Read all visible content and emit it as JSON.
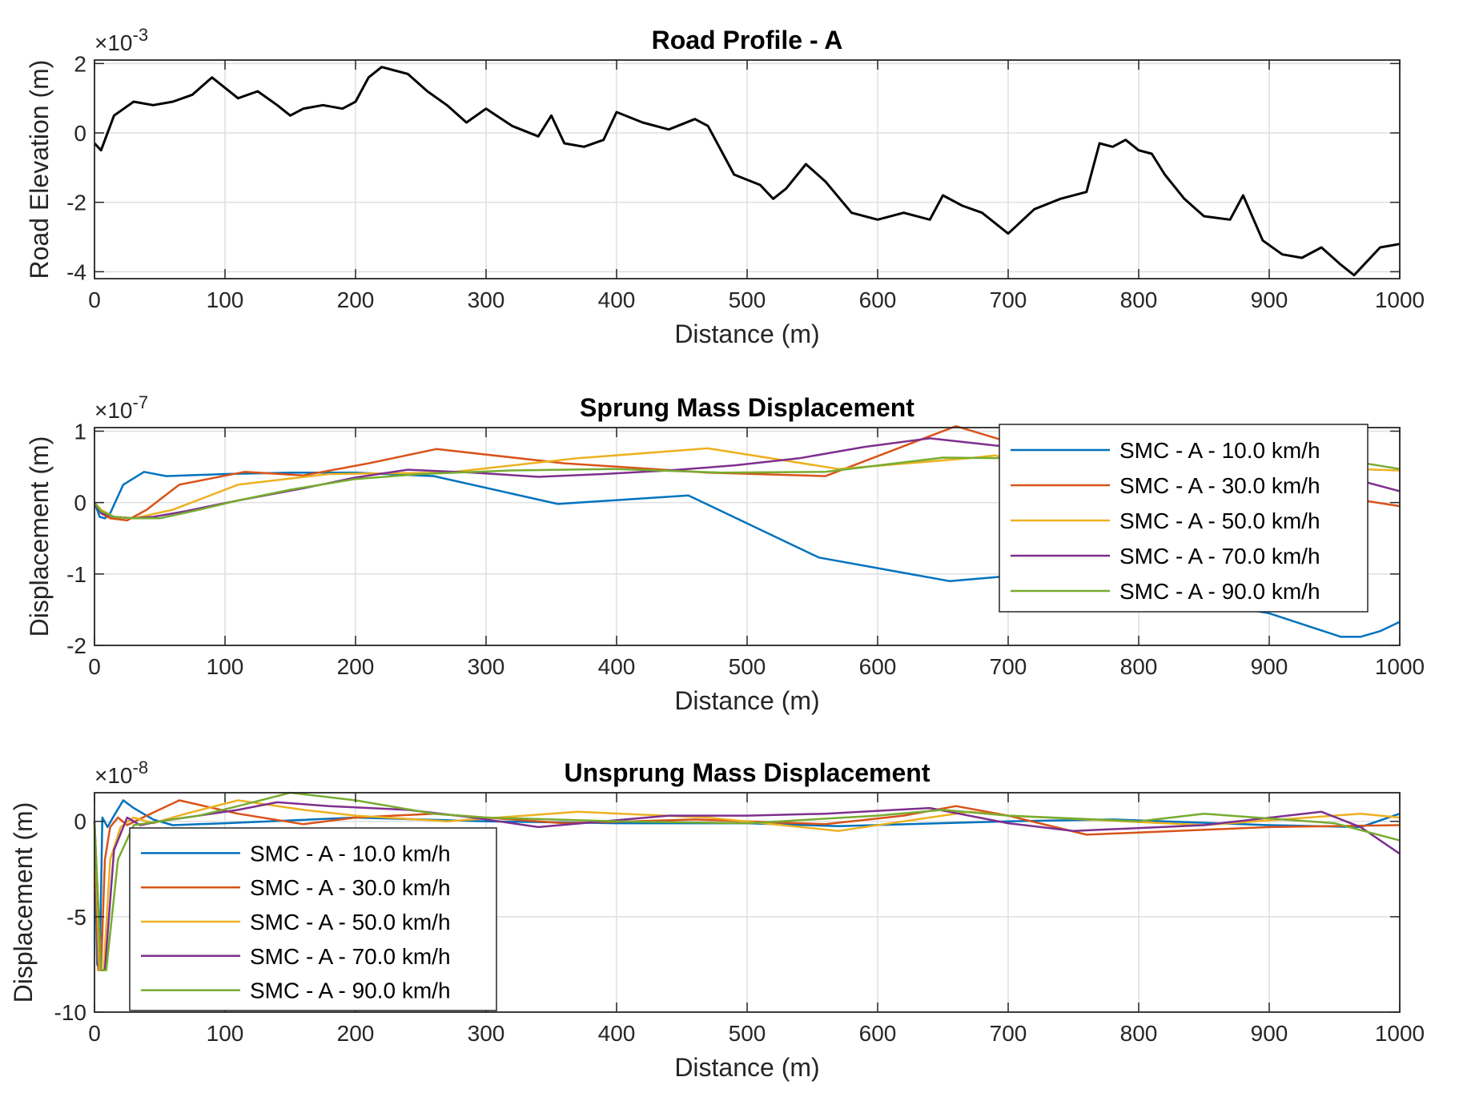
{
  "chart_data": [
    {
      "type": "line",
      "title": "Road Profile - A",
      "xlabel": "Distance (m)",
      "ylabel": "Road Elevation (m)",
      "exponent": "-3",
      "xlim": [
        0,
        1000
      ],
      "ylim": [
        -4.2,
        2.1
      ],
      "xticks": [
        "0",
        "100",
        "200",
        "300",
        "400",
        "500",
        "600",
        "700",
        "800",
        "900",
        "1000"
      ],
      "yticks": [
        2,
        0,
        -2,
        -4
      ],
      "ytick_labels": [
        "2",
        "0",
        "-2",
        "-4"
      ],
      "grid": true,
      "series": [
        {
          "color": "#000000",
          "x": [
            0,
            5,
            15,
            30,
            45,
            60,
            75,
            90,
            100,
            110,
            125,
            140,
            150,
            160,
            175,
            190,
            200,
            210,
            220,
            230,
            240,
            255,
            270,
            285,
            300,
            320,
            340,
            350,
            360,
            375,
            390,
            400,
            420,
            440,
            460,
            470,
            490,
            510,
            520,
            530,
            545,
            560,
            580,
            600,
            620,
            640,
            650,
            665,
            680,
            700,
            720,
            740,
            760,
            770,
            780,
            790,
            800,
            810,
            820,
            835,
            850,
            870,
            880,
            895,
            910,
            925,
            940,
            955,
            965,
            975,
            985,
            1000
          ],
          "y": [
            -0.3,
            -0.5,
            0.5,
            0.9,
            0.8,
            0.9,
            1.1,
            1.6,
            1.3,
            1.0,
            1.2,
            0.8,
            0.5,
            0.7,
            0.8,
            0.7,
            0.9,
            1.6,
            1.9,
            1.8,
            1.7,
            1.2,
            0.8,
            0.3,
            0.7,
            0.2,
            -0.1,
            0.5,
            -0.3,
            -0.4,
            -0.2,
            0.6,
            0.3,
            0.1,
            0.4,
            0.2,
            -1.2,
            -1.5,
            -1.9,
            -1.6,
            -0.9,
            -1.4,
            -2.3,
            -2.5,
            -2.3,
            -2.5,
            -1.8,
            -2.1,
            -2.3,
            -2.9,
            -2.2,
            -1.9,
            -1.7,
            -0.3,
            -0.4,
            -0.2,
            -0.5,
            -0.6,
            -1.2,
            -1.9,
            -2.4,
            -2.5,
            -1.8,
            -3.1,
            -3.5,
            -3.6,
            -3.3,
            -3.8,
            -4.1,
            -3.7,
            -3.3,
            -3.2
          ]
        }
      ]
    },
    {
      "type": "line",
      "title": "Sprung Mass Displacement",
      "xlabel": "Distance (m)",
      "ylabel": "Displacement (m)",
      "exponent": "-7",
      "xlim": [
        0,
        1000
      ],
      "ylim": [
        -2,
        1.05
      ],
      "xticks": [
        "0",
        "100",
        "200",
        "300",
        "400",
        "500",
        "600",
        "700",
        "800",
        "900",
        "1000"
      ],
      "yticks": [
        1,
        0,
        -1,
        -2
      ],
      "ytick_labels": [
        "1",
        "0",
        "-1",
        "-2"
      ],
      "grid": true,
      "legend_position": "top-right",
      "series": [
        {
          "name": "SMC - A - 10.0 km/h",
          "color": "#0072BD",
          "x": [
            0,
            4,
            8,
            12,
            22,
            38,
            55,
            100,
            150,
            200,
            260,
            355,
            455,
            555,
            655,
            700,
            720,
            900,
            955,
            970,
            985,
            1000
          ],
          "y": [
            0,
            -0.2,
            -0.22,
            -0.15,
            0.25,
            0.43,
            0.37,
            0.4,
            0.42,
            0.42,
            0.37,
            -0.02,
            0.1,
            -0.77,
            -1.1,
            -1.03,
            -1.0,
            -1.55,
            -1.88,
            -1.88,
            -1.8,
            -1.67
          ]
        },
        {
          "name": "SMC - A - 30.0 km/h",
          "color": "#D95319",
          "x": [
            0,
            5,
            12,
            25,
            40,
            65,
            115,
            160,
            210,
            262,
            360,
            470,
            560,
            610,
            660,
            700,
            720,
            1000
          ],
          "y": [
            0,
            -0.15,
            -0.22,
            -0.25,
            -0.1,
            0.25,
            0.43,
            0.38,
            0.55,
            0.75,
            0.55,
            0.42,
            0.37,
            0.72,
            1.07,
            0.85,
            0.75,
            -0.05
          ]
        },
        {
          "name": "SMC - A - 50.0 km/h",
          "color": "#EDB120",
          "x": [
            0,
            5,
            15,
            30,
            60,
            110,
            180,
            270,
            370,
            470,
            570,
            670,
            690,
            700,
            1000
          ],
          "y": [
            0,
            -0.1,
            -0.2,
            -0.22,
            -0.1,
            0.25,
            0.4,
            0.42,
            0.62,
            0.76,
            0.47,
            0.62,
            0.66,
            0.62,
            0.45
          ]
        },
        {
          "name": "SMC - A - 70.0 km/h",
          "color": "#7E2F8E",
          "x": [
            0,
            5,
            15,
            30,
            45,
            70,
            110,
            160,
            200,
            240,
            290,
            340,
            390,
            440,
            490,
            540,
            590,
            640,
            700,
            720,
            930,
            1000
          ],
          "y": [
            0,
            -0.15,
            -0.2,
            -0.22,
            -0.2,
            -0.12,
            0.03,
            0.2,
            0.35,
            0.46,
            0.42,
            0.36,
            0.4,
            0.45,
            0.52,
            0.62,
            0.78,
            0.9,
            0.78,
            0.72,
            0.5,
            0.16
          ]
        },
        {
          "name": "SMC - A - 90.0 km/h",
          "color": "#77AC30",
          "x": [
            0,
            5,
            15,
            30,
            50,
            80,
            110,
            150,
            200,
            250,
            320,
            400,
            480,
            560,
            650,
            700,
            720,
            940,
            1000
          ],
          "y": [
            0,
            -0.12,
            -0.2,
            -0.22,
            -0.22,
            -0.1,
            0.03,
            0.18,
            0.33,
            0.4,
            0.45,
            0.47,
            0.42,
            0.43,
            0.63,
            0.62,
            0.6,
            0.65,
            0.47
          ]
        }
      ]
    },
    {
      "type": "line",
      "title": "Unsprung Mass Displacement",
      "xlabel": "Distance (m)",
      "ylabel": "Displacement (m)",
      "exponent": "-8",
      "xlim": [
        0,
        1000
      ],
      "ylim": [
        -10,
        1.5
      ],
      "xticks": [
        "0",
        "100",
        "200",
        "300",
        "400",
        "500",
        "600",
        "700",
        "800",
        "900",
        "1000"
      ],
      "yticks": [
        0,
        -5,
        -10
      ],
      "ytick_labels": [
        "0",
        "-5",
        "-10"
      ],
      "grid": true,
      "legend_position": "bottom-left",
      "series": [
        {
          "name": "SMC - A - 10.0 km/h",
          "color": "#0072BD",
          "x": [
            0,
            2,
            4,
            6,
            10,
            15,
            22,
            30,
            45,
            60,
            100,
            200,
            300,
            400,
            500,
            570,
            700,
            780,
            900,
            970,
            1000
          ],
          "y": [
            0,
            -7.5,
            -7.8,
            0.2,
            -0.3,
            0.3,
            1.1,
            0.7,
            0.1,
            -0.2,
            -0.1,
            0.2,
            0.0,
            -0.1,
            -0.1,
            -0.25,
            0.0,
            0.1,
            -0.2,
            -0.3,
            0.4
          ]
        },
        {
          "name": "SMC - A - 30.0 km/h",
          "color": "#D95319",
          "x": [
            0,
            3,
            5,
            8,
            12,
            18,
            25,
            40,
            65,
            110,
            160,
            200,
            260,
            300,
            360,
            460,
            560,
            620,
            660,
            700,
            760,
            900,
            1000
          ],
          "y": [
            0,
            -7.8,
            -7.8,
            -2,
            -0.3,
            0.2,
            -0.2,
            0.3,
            1.1,
            0.4,
            -0.15,
            0.2,
            0.4,
            0.2,
            -0.1,
            0.1,
            -0.15,
            0.3,
            0.8,
            0.3,
            -0.7,
            -0.3,
            -0.2
          ]
        },
        {
          "name": "SMC - A - 50.0 km/h",
          "color": "#EDB120",
          "x": [
            0,
            4,
            7,
            12,
            20,
            30,
            45,
            70,
            110,
            160,
            200,
            270,
            370,
            470,
            570,
            670,
            700,
            850,
            970,
            1000
          ],
          "y": [
            0,
            -7.8,
            -7.8,
            -2,
            -0.3,
            0.2,
            -0.1,
            0.4,
            1.1,
            0.6,
            0.3,
            0.0,
            0.5,
            0.2,
            -0.5,
            0.5,
            0.3,
            -0.2,
            0.4,
            0.2
          ]
        },
        {
          "name": "SMC - A - 70.0 km/h",
          "color": "#7E2F8E",
          "x": [
            0,
            5,
            8,
            15,
            25,
            35,
            50,
            80,
            110,
            140,
            180,
            240,
            290,
            340,
            390,
            440,
            500,
            560,
            640,
            700,
            750,
            850,
            940,
            970,
            1000
          ],
          "y": [
            0,
            -7.8,
            -7.8,
            -1.5,
            0.2,
            -0.2,
            0.0,
            0.3,
            0.6,
            1.0,
            0.8,
            0.6,
            0.2,
            -0.3,
            0.0,
            0.3,
            0.3,
            0.4,
            0.7,
            -0.1,
            -0.5,
            -0.2,
            0.5,
            -0.3,
            -1.7
          ]
        },
        {
          "name": "SMC - A - 90.0 km/h",
          "color": "#77AC30",
          "x": [
            0,
            5,
            9,
            18,
            30,
            50,
            80,
            110,
            150,
            200,
            260,
            300,
            400,
            500,
            600,
            650,
            700,
            800,
            850,
            950,
            1000
          ],
          "y": [
            0,
            -7.8,
            -7.8,
            -2,
            -0.2,
            0.0,
            0.3,
            0.8,
            1.5,
            1.1,
            0.4,
            0.2,
            0.0,
            -0.1,
            0.3,
            0.6,
            0.3,
            0.0,
            0.4,
            -0.1,
            -1.0
          ]
        }
      ]
    }
  ]
}
